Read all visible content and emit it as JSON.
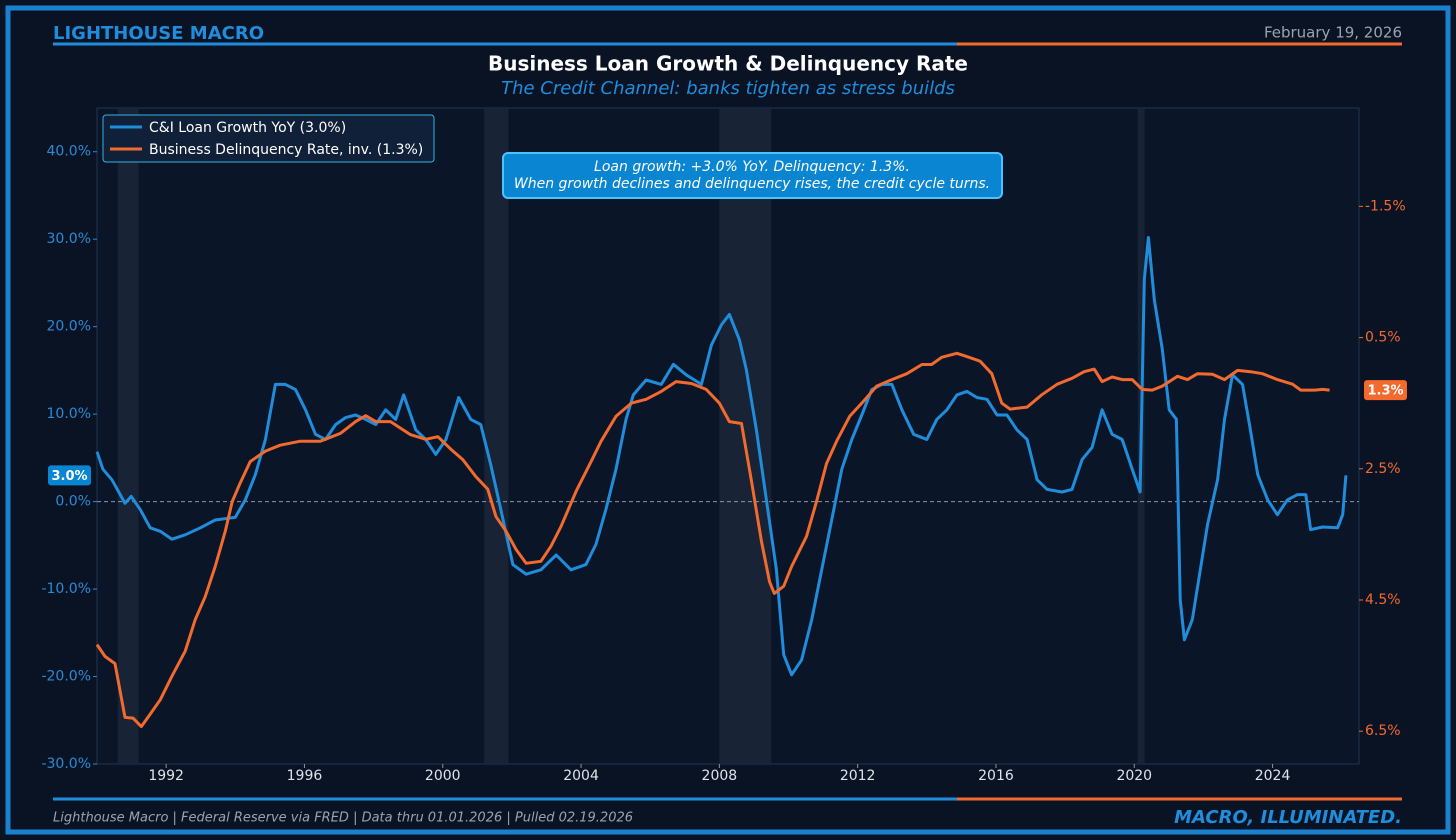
{
  "header": {
    "brand": "LIGHTHOUSE MACRO",
    "date": "February 19, 2026"
  },
  "chart_data": {
    "type": "line",
    "title": "Business Loan Growth & Delinquency Rate",
    "subtitle": "The Credit Channel: banks tighten as stress builds",
    "annotation": [
      "Loan growth: +3.0% YoY. Delinquency: 1.3%.",
      "When growth declines and delinquency rises, the credit cycle turns."
    ],
    "xlim": [
      1990,
      2026.5
    ],
    "xticks": [
      1992,
      1996,
      2000,
      2004,
      2008,
      2012,
      2016,
      2020,
      2024
    ],
    "ylim": [
      -30,
      45
    ],
    "yticks": [
      {
        "value": -30,
        "label": "-30.0%"
      },
      {
        "value": -20,
        "label": "-20.0%"
      },
      {
        "value": -10,
        "label": "-10.0%"
      },
      {
        "value": 0,
        "label": "0.0%"
      },
      {
        "value": 10,
        "label": "10.0%"
      },
      {
        "value": 20,
        "label": "20.0%"
      },
      {
        "value": 30,
        "label": "30.0%"
      },
      {
        "value": 40,
        "label": "40.0%"
      }
    ],
    "y2lim": [
      -3,
      7
    ],
    "y2_inverted": true,
    "y2ticks": [
      {
        "value": -1.5,
        "label": "-1.5%"
      },
      {
        "value": 0.5,
        "label": "0.5%"
      },
      {
        "value": 2.5,
        "label": "2.5%"
      },
      {
        "value": 4.5,
        "label": "4.5%"
      },
      {
        "value": 6.5,
        "label": "6.5%"
      }
    ],
    "reference_line": 0,
    "recessions": [
      [
        1990.6,
        1991.2
      ],
      [
        2001.2,
        2001.9
      ],
      [
        2008.0,
        2009.5
      ],
      [
        2020.1,
        2020.3
      ]
    ],
    "legend": "upper left",
    "series": [
      {
        "name": "C&I Loan Growth YoY (3.0%)",
        "color": "#1f8ddb",
        "axis": "y",
        "end_label": "3.0%",
        "x": [
          1990.0,
          1990.17,
          1990.43,
          1990.67,
          1990.81,
          1990.99,
          1991.25,
          1991.54,
          1991.83,
          1992.17,
          1992.55,
          1992.99,
          1993.42,
          1994.0,
          1994.29,
          1994.58,
          1994.87,
          1995.16,
          1995.45,
          1995.74,
          1996.03,
          1996.32,
          1996.61,
          1996.9,
          1997.19,
          1997.48,
          1997.77,
          1998.06,
          1998.35,
          1998.64,
          1998.87,
          1999.22,
          1999.51,
          1999.8,
          2000.09,
          2000.46,
          2000.81,
          2001.1,
          2001.39,
          2001.68,
          2002.03,
          2002.41,
          2002.84,
          2003.28,
          2003.71,
          2004.14,
          2004.43,
          2004.72,
          2005.01,
          2005.3,
          2005.51,
          2005.88,
          2006.32,
          2006.67,
          2007.04,
          2007.48,
          2007.77,
          2008.06,
          2008.29,
          2008.58,
          2008.78,
          2009.07,
          2009.36,
          2009.65,
          2009.86,
          2010.09,
          2010.38,
          2010.67,
          2010.96,
          2011.25,
          2011.54,
          2011.83,
          2012.12,
          2012.41,
          2012.7,
          2012.99,
          2013.28,
          2013.62,
          2014.0,
          2014.29,
          2014.58,
          2014.87,
          2015.16,
          2015.45,
          2015.74,
          2016.03,
          2016.32,
          2016.61,
          2016.9,
          2017.19,
          2017.48,
          2017.91,
          2018.2,
          2018.49,
          2018.78,
          2019.07,
          2019.36,
          2019.65,
          2019.94,
          2020.17,
          2020.29,
          2020.41,
          2020.58,
          2020.81,
          2021.01,
          2021.22,
          2021.33,
          2021.45,
          2021.68,
          2021.91,
          2022.12,
          2022.41,
          2022.61,
          2022.84,
          2023.13,
          2023.36,
          2023.57,
          2023.86,
          2024.14,
          2024.43,
          2024.72,
          2024.96,
          2025.1,
          2025.45,
          2025.88,
          2026.03,
          2026.12
        ],
        "values": [
          5.7,
          3.7,
          2.5,
          0.8,
          -0.2,
          0.6,
          -0.9,
          -3.0,
          -3.4,
          -4.3,
          -3.8,
          -3.0,
          -2.1,
          -1.8,
          0.2,
          3.1,
          7.1,
          13.4,
          13.4,
          12.8,
          10.5,
          7.7,
          7.1,
          8.8,
          9.6,
          9.9,
          9.4,
          8.8,
          10.5,
          9.4,
          12.2,
          8.2,
          7.1,
          5.4,
          7.1,
          11.9,
          9.4,
          8.8,
          4.2,
          -0.9,
          -7.2,
          -8.3,
          -7.8,
          -6.1,
          -7.8,
          -7.2,
          -4.9,
          -0.9,
          3.7,
          9.4,
          12.2,
          13.9,
          13.4,
          15.7,
          14.5,
          13.4,
          17.9,
          20.2,
          21.4,
          18.5,
          15.1,
          8.2,
          0.2,
          -7.8,
          -17.5,
          -19.8,
          -18.1,
          -13.5,
          -7.8,
          -2.1,
          3.7,
          7.1,
          9.9,
          12.8,
          13.4,
          13.4,
          10.5,
          7.7,
          7.1,
          9.4,
          10.5,
          12.2,
          12.6,
          11.9,
          11.7,
          9.9,
          9.9,
          8.2,
          7.1,
          2.5,
          1.4,
          1.1,
          1.4,
          4.8,
          6.2,
          10.5,
          7.7,
          7.1,
          3.7,
          1.1,
          25.4,
          30.2,
          23.1,
          17.4,
          10.5,
          9.4,
          -11.2,
          -15.8,
          -13.5,
          -7.8,
          -2.6,
          2.5,
          9.4,
          14.5,
          13.4,
          8.2,
          3.1,
          0.2,
          -1.5,
          0.2,
          0.8,
          0.8,
          -3.2,
          -2.9,
          -3.0,
          -1.5,
          3.0
        ]
      },
      {
        "name": "Business Delinquency Rate, inv. (1.3%)",
        "color": "#f26a2e",
        "axis": "y2",
        "end_label": "1.3%",
        "x": [
          1990.0,
          1990.23,
          1990.52,
          1990.81,
          1991.04,
          1991.28,
          1991.54,
          1991.83,
          1992.17,
          1992.55,
          1992.84,
          1993.13,
          1993.42,
          1993.71,
          1993.91,
          1994.14,
          1994.43,
          1994.87,
          1995.3,
          1995.88,
          1996.46,
          1997.04,
          1997.48,
          1997.77,
          1998.06,
          1998.49,
          1999.07,
          1999.51,
          1999.86,
          2000.23,
          2000.58,
          2000.96,
          2001.3,
          2001.54,
          2001.83,
          2002.12,
          2002.41,
          2002.84,
          2003.13,
          2003.42,
          2003.86,
          2004.29,
          2004.58,
          2005.01,
          2005.45,
          2005.88,
          2006.32,
          2006.75,
          2007.19,
          2007.62,
          2008.0,
          2008.29,
          2008.64,
          2008.93,
          2009.22,
          2009.45,
          2009.59,
          2009.86,
          2010.09,
          2010.52,
          2010.81,
          2011.1,
          2011.39,
          2011.77,
          2012.17,
          2012.55,
          2012.99,
          2013.42,
          2013.86,
          2014.14,
          2014.43,
          2014.87,
          2015.16,
          2015.54,
          2015.88,
          2016.17,
          2016.41,
          2016.9,
          2017.33,
          2017.77,
          2018.2,
          2018.55,
          2018.84,
          2019.07,
          2019.36,
          2019.65,
          2019.94,
          2020.23,
          2020.52,
          2020.81,
          2021.25,
          2021.54,
          2021.83,
          2022.26,
          2022.61,
          2022.99,
          2023.36,
          2023.71,
          2024.14,
          2024.58,
          2024.81,
          2025.22,
          2025.45,
          2025.65
        ],
        "values": [
          5.18,
          5.36,
          5.47,
          6.29,
          6.3,
          6.43,
          6.24,
          6.02,
          5.66,
          5.28,
          4.8,
          4.45,
          3.99,
          3.45,
          3.0,
          2.72,
          2.39,
          2.23,
          2.14,
          2.08,
          2.08,
          1.96,
          1.78,
          1.69,
          1.78,
          1.78,
          1.98,
          2.05,
          2.01,
          2.2,
          2.36,
          2.62,
          2.81,
          3.23,
          3.45,
          3.73,
          3.94,
          3.91,
          3.68,
          3.38,
          2.84,
          2.39,
          2.08,
          1.7,
          1.5,
          1.44,
          1.32,
          1.17,
          1.2,
          1.29,
          1.5,
          1.78,
          1.81,
          2.69,
          3.61,
          4.22,
          4.4,
          4.29,
          3.99,
          3.53,
          3.0,
          2.42,
          2.08,
          1.7,
          1.47,
          1.24,
          1.14,
          1.05,
          0.91,
          0.91,
          0.8,
          0.74,
          0.79,
          0.86,
          1.05,
          1.5,
          1.59,
          1.56,
          1.37,
          1.21,
          1.12,
          1.02,
          0.98,
          1.17,
          1.1,
          1.14,
          1.14,
          1.29,
          1.3,
          1.24,
          1.09,
          1.14,
          1.05,
          1.06,
          1.14,
          1.0,
          1.02,
          1.05,
          1.14,
          1.21,
          1.3,
          1.3,
          1.29,
          1.3
        ]
      }
    ]
  },
  "footer": {
    "source": "Lighthouse Macro | Federal Reserve via FRED | Data thru 01.01.2026 | Pulled 02.19.2026",
    "tagline": "MACRO, ILLUMINATED."
  }
}
